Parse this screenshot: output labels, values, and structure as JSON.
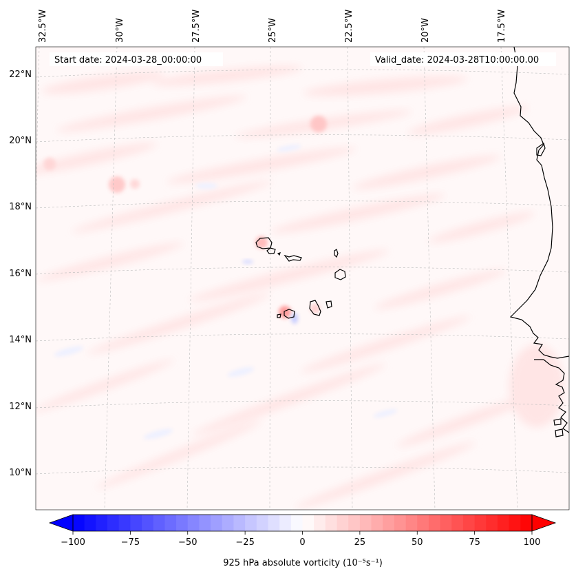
{
  "map": {
    "start_date": "Start date: 2024-03-28_00:00:00",
    "valid_date": "Valid_date: 2024-03-28T10:00:00.00",
    "lon_labels": [
      "32.5°W",
      "30°W",
      "27.5°W",
      "25°W",
      "22.5°W",
      "20°W",
      "17.5°W"
    ],
    "lat_labels": [
      "22°N",
      "20°N",
      "18°N",
      "16°N",
      "14°N",
      "12°N",
      "10°N"
    ]
  },
  "colorbar": {
    "label": "925 hPa absolute vorticity (10⁻⁵s⁻¹)",
    "ticks": [
      "−100",
      "−75",
      "−50",
      "−25",
      "0",
      "25",
      "50",
      "75",
      "100"
    ],
    "min": -100,
    "max": 100,
    "colormap": "bwr",
    "extend": "both"
  }
}
